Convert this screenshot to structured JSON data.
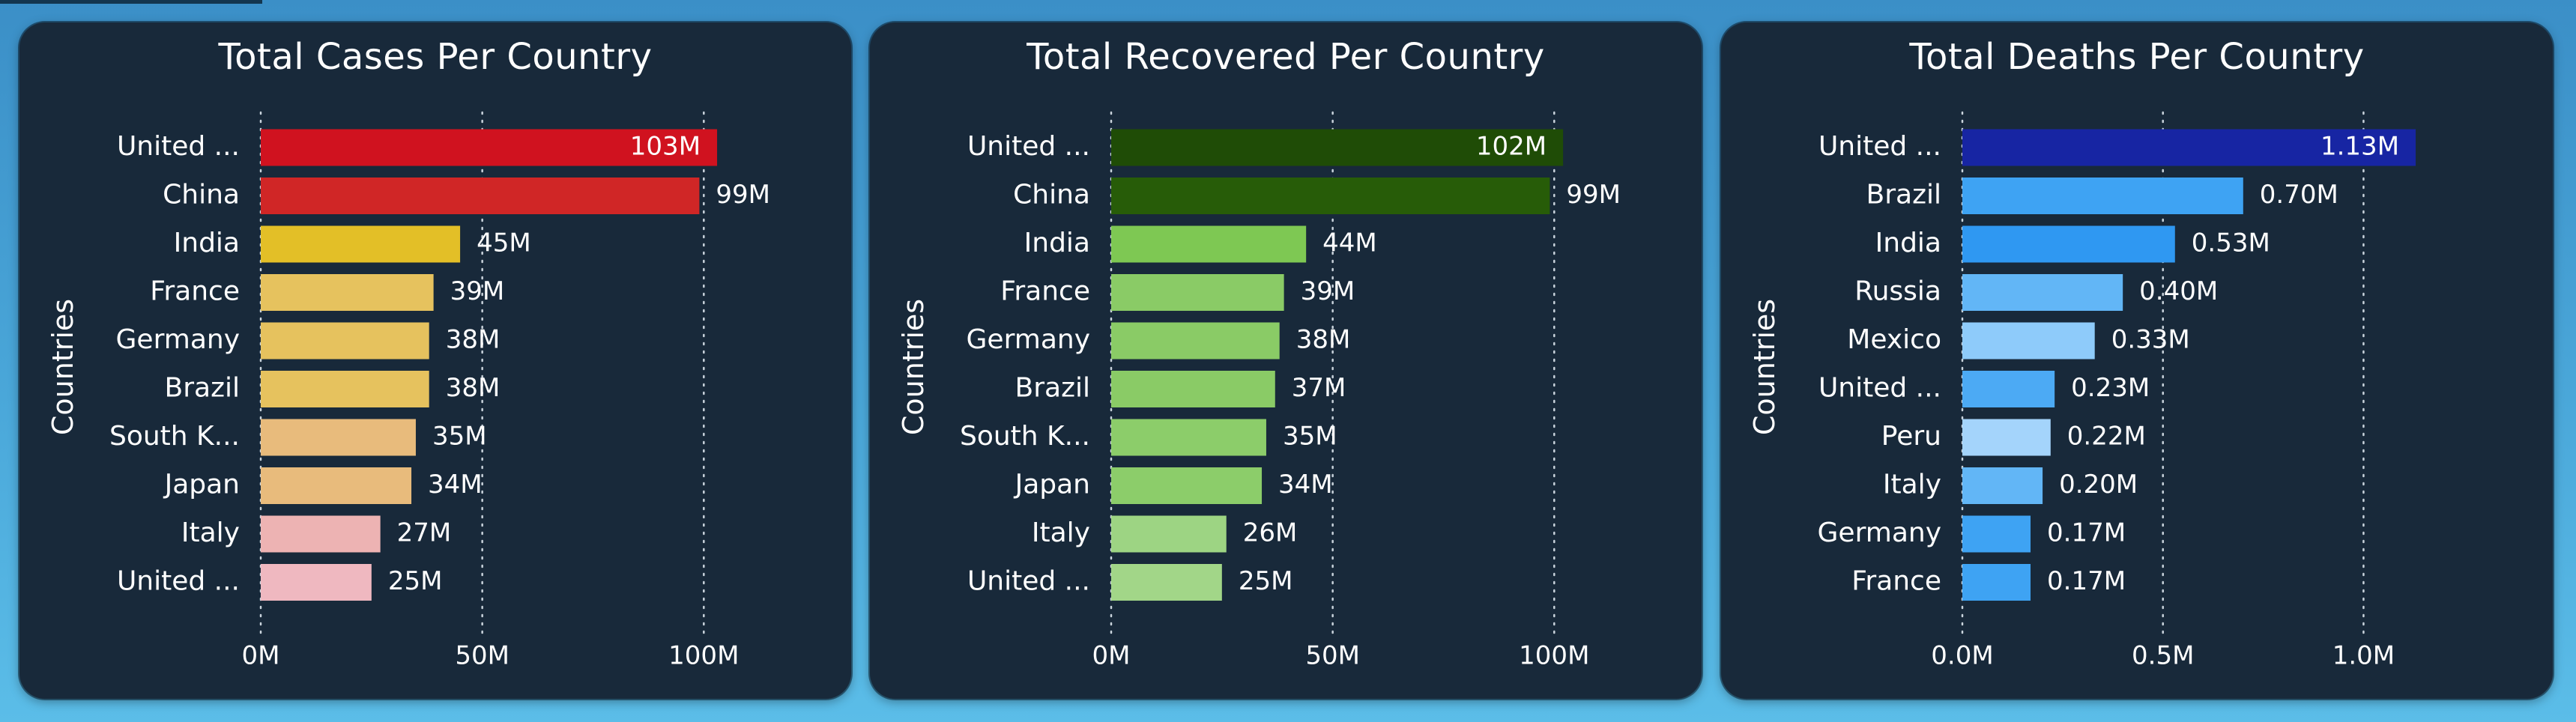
{
  "page": {
    "background": "#4aa7d9",
    "panel_background": "#18293a"
  },
  "charts": {
    "cases": {
      "title": "Total Cases Per Country",
      "ylabel": "Countries"
    },
    "recovered": {
      "title": "Total Recovered Per Country",
      "ylabel": "Countries"
    },
    "deaths": {
      "title": "Total Deaths Per Country",
      "ylabel": "Countries"
    }
  },
  "chart_data": [
    {
      "type": "bar",
      "orientation": "horizontal",
      "title": "Total Cases Per Country",
      "xlabel": "",
      "ylabel": "Countries",
      "categories": [
        "United ...",
        "China",
        "India",
        "France",
        "Germany",
        "Brazil",
        "South K...",
        "Japan",
        "Italy",
        "United ..."
      ],
      "values": [
        103,
        99,
        45,
        39,
        38,
        38,
        35,
        34,
        27,
        25
      ],
      "value_labels": [
        "103M",
        "99M",
        "45M",
        "39M",
        "38M",
        "38M",
        "35M",
        "34M",
        "27M",
        "25M"
      ],
      "colors": [
        "#d0121f",
        "#d02626",
        "#e3bf27",
        "#e6c25e",
        "#e6c25e",
        "#e6c25e",
        "#e8bb7c",
        "#e8bb7c",
        "#edb3b3",
        "#efb8c0"
      ],
      "xticks": [
        0,
        50,
        100
      ],
      "xtick_labels": [
        "0M",
        "50M",
        "100M"
      ],
      "xlim": [
        0,
        115
      ],
      "grid": true,
      "unit": "M"
    },
    {
      "type": "bar",
      "orientation": "horizontal",
      "title": "Total Recovered Per Country",
      "xlabel": "",
      "ylabel": "Countries",
      "categories": [
        "United ...",
        "China",
        "India",
        "France",
        "Germany",
        "Brazil",
        "South K...",
        "Japan",
        "Italy",
        "United ..."
      ],
      "values": [
        102,
        99,
        44,
        39,
        38,
        37,
        35,
        34,
        26,
        25
      ],
      "value_labels": [
        "102M",
        "99M",
        "44M",
        "39M",
        "38M",
        "37M",
        "35M",
        "34M",
        "26M",
        "25M"
      ],
      "colors": [
        "#1f4c06",
        "#275c08",
        "#7ec853",
        "#8acb66",
        "#8acb66",
        "#8acb66",
        "#8ccd6a",
        "#8ccd6a",
        "#9dd483",
        "#a2d688"
      ],
      "xticks": [
        0,
        50,
        100
      ],
      "xtick_labels": [
        "0M",
        "50M",
        "100M"
      ],
      "xlim": [
        0,
        115
      ],
      "grid": true,
      "unit": "M"
    },
    {
      "type": "bar",
      "orientation": "horizontal",
      "title": "Total Deaths Per Country",
      "xlabel": "",
      "ylabel": "Countries",
      "categories": [
        "United ...",
        "Brazil",
        "India",
        "Russia",
        "Mexico",
        "United ...",
        "Peru",
        "Italy",
        "Germany",
        "France"
      ],
      "values": [
        1.13,
        0.7,
        0.53,
        0.4,
        0.33,
        0.23,
        0.22,
        0.2,
        0.17,
        0.17
      ],
      "value_labels": [
        "1.13M",
        "0.70M",
        "0.53M",
        "0.40M",
        "0.33M",
        "0.23M",
        "0.22M",
        "0.20M",
        "0.17M",
        "0.17M"
      ],
      "colors": [
        "#1725a3",
        "#3ea3f3",
        "#2f98f2",
        "#62b6f6",
        "#8ecbfa",
        "#4caaf4",
        "#a4d4fb",
        "#62b6f6",
        "#3ea3f3",
        "#3ea3f3"
      ],
      "xticks": [
        0,
        0.5,
        1.0
      ],
      "xtick_labels": [
        "0.0M",
        "0.5M",
        "1.0M"
      ],
      "xlim": [
        0,
        1.27
      ],
      "grid": true,
      "unit": "M"
    }
  ]
}
